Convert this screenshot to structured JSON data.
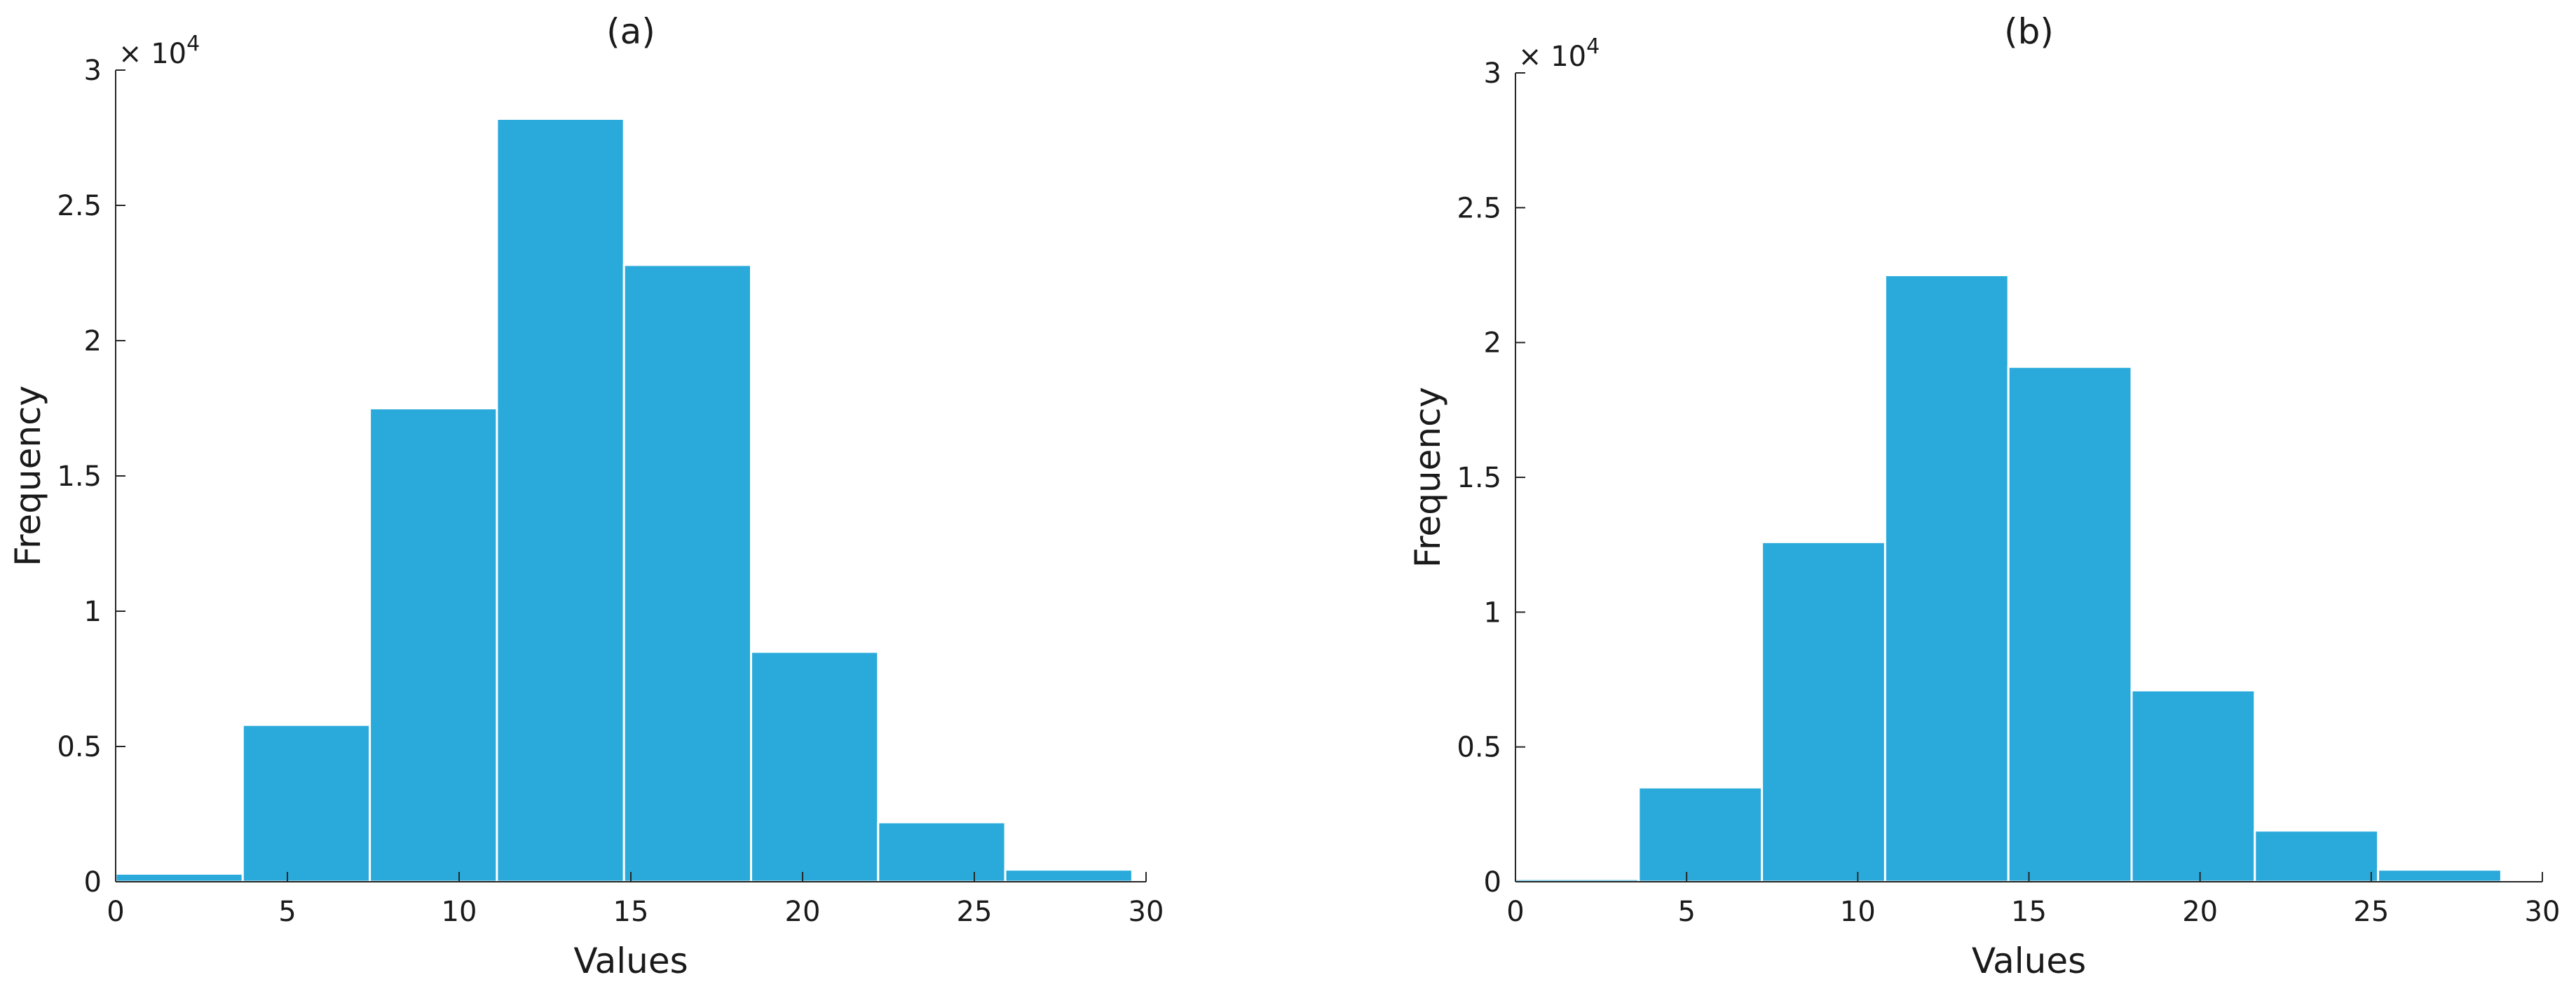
{
  "chart_data": [
    {
      "type": "bar",
      "title": "(a)",
      "xlabel": "Values",
      "ylabel": "Frequency",
      "y_exponent_label": "× 10",
      "y_exponent_power": "4",
      "xlim": [
        0,
        30
      ],
      "ylim": [
        0,
        3
      ],
      "xticks": [
        "0",
        "5",
        "10",
        "15",
        "20",
        "25",
        "30"
      ],
      "yticks": [
        "0",
        "0.5",
        "1",
        "1.5",
        "2",
        "2.5",
        "3"
      ],
      "grid": false,
      "bar_color": "#2aaadb",
      "bin_edges": [
        0,
        3.7,
        7.4,
        11.1,
        14.8,
        18.5,
        22.2,
        25.9,
        29.6
      ],
      "values": [
        0.03,
        0.58,
        1.75,
        2.82,
        2.28,
        0.85,
        0.22,
        0.045
      ]
    },
    {
      "type": "bar",
      "title": "(b)",
      "xlabel": "Values",
      "ylabel": "Frequency",
      "y_exponent_label": "× 10",
      "y_exponent_power": "4",
      "xlim": [
        0,
        30
      ],
      "ylim": [
        0,
        3
      ],
      "xticks": [
        "0",
        "5",
        "10",
        "15",
        "20",
        "25",
        "30"
      ],
      "yticks": [
        "0",
        "0.5",
        "1",
        "1.5",
        "2",
        "2.5",
        "3"
      ],
      "grid": false,
      "bar_color": "#2aaadb",
      "bin_edges": [
        0,
        3.6,
        7.2,
        10.8,
        14.4,
        18.0,
        21.6,
        25.2,
        28.8
      ],
      "values": [
        0.01,
        0.35,
        1.26,
        2.25,
        1.91,
        0.71,
        0.19,
        0.045
      ]
    }
  ]
}
